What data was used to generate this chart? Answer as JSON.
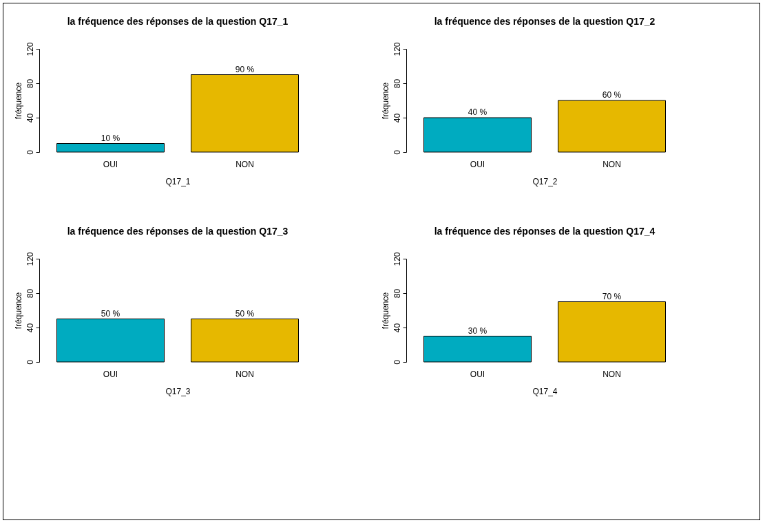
{
  "chart_data": [
    {
      "type": "bar",
      "title": "la fréquence des réponses de la question Q17_1",
      "xlabel": "Q17_1",
      "ylabel": "fréquence",
      "categories": [
        "OUI",
        "NON"
      ],
      "values": [
        10,
        90
      ],
      "colors": [
        "#00abc0",
        "#e6b800"
      ],
      "value_labels": [
        "10 %",
        "90 %"
      ],
      "ylim": [
        0,
        120
      ],
      "yticks": [
        0,
        40,
        80,
        120
      ]
    },
    {
      "type": "bar",
      "title": "la fréquence des réponses de la question Q17_2",
      "xlabel": "Q17_2",
      "ylabel": "fréquence",
      "categories": [
        "OUI",
        "NON"
      ],
      "values": [
        40,
        60
      ],
      "colors": [
        "#00abc0",
        "#e6b800"
      ],
      "value_labels": [
        "40 %",
        "60 %"
      ],
      "ylim": [
        0,
        120
      ],
      "yticks": [
        0,
        40,
        80,
        120
      ]
    },
    {
      "type": "bar",
      "title": "la fréquence des réponses de la question Q17_3",
      "xlabel": "Q17_3",
      "ylabel": "fréquence",
      "categories": [
        "OUI",
        "NON"
      ],
      "values": [
        50,
        50
      ],
      "colors": [
        "#00abc0",
        "#e6b800"
      ],
      "value_labels": [
        "50 %",
        "50 %"
      ],
      "ylim": [
        0,
        120
      ],
      "yticks": [
        0,
        40,
        80,
        120
      ]
    },
    {
      "type": "bar",
      "title": "la fréquence des réponses de la question Q17_4",
      "xlabel": "Q17_4",
      "ylabel": "fréquence",
      "categories": [
        "OUI",
        "NON"
      ],
      "values": [
        30,
        70
      ],
      "colors": [
        "#00abc0",
        "#e6b800"
      ],
      "value_labels": [
        "30 %",
        "70 %"
      ],
      "ylim": [
        0,
        120
      ],
      "yticks": [
        0,
        40,
        80,
        120
      ]
    }
  ]
}
